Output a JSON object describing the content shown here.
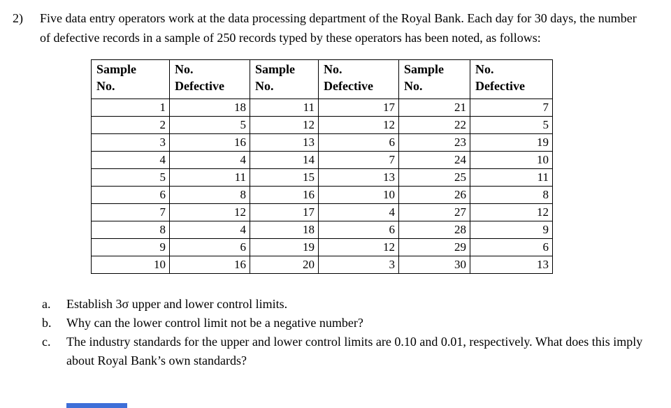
{
  "accent_color": "#3e6fd8",
  "question": {
    "number": "2)",
    "text": "Five data entry operators work at the data processing department of the Royal Bank. Each day for 30 days, the number of defective records in a sample of 250 records typed by these operators has been noted, as follows:"
  },
  "table": {
    "headers": [
      {
        "line1": "Sample",
        "line2": "No."
      },
      {
        "line1": "No.",
        "line2": "Defective"
      },
      {
        "line1": "Sample",
        "line2": "No."
      },
      {
        "line1": "No.",
        "line2": "Defective"
      },
      {
        "line1": "Sample",
        "line2": "No."
      },
      {
        "line1": "No.",
        "line2": "Defective"
      }
    ],
    "rows": [
      [
        1,
        18,
        11,
        17,
        21,
        7
      ],
      [
        2,
        5,
        12,
        12,
        22,
        5
      ],
      [
        3,
        16,
        13,
        6,
        23,
        19
      ],
      [
        4,
        4,
        14,
        7,
        24,
        10
      ],
      [
        5,
        11,
        15,
        13,
        25,
        11
      ],
      [
        6,
        8,
        16,
        10,
        26,
        8
      ],
      [
        7,
        12,
        17,
        4,
        27,
        12
      ],
      [
        8,
        4,
        18,
        6,
        28,
        9
      ],
      [
        9,
        6,
        19,
        12,
        29,
        6
      ],
      [
        10,
        16,
        20,
        3,
        30,
        13
      ]
    ]
  },
  "sub_questions": [
    {
      "label": "a.",
      "text": "Establish 3σ upper and lower control limits."
    },
    {
      "label": "b.",
      "text": "Why can the lower control limit not be a negative number?"
    },
    {
      "label": "c.",
      "text": "The industry standards for the upper and lower control limits are 0.10 and 0.01, respectively. What does this imply about Royal Bank’s own standards?"
    }
  ]
}
